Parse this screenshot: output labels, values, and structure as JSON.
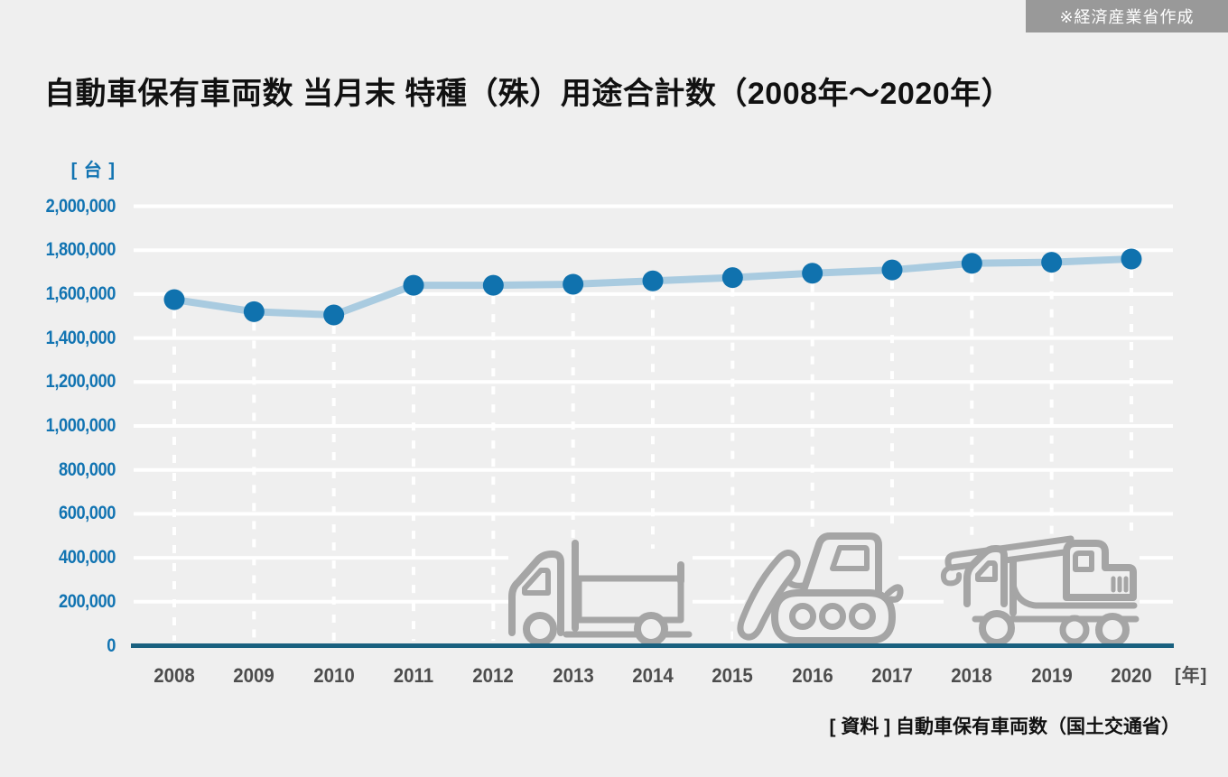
{
  "badge": {
    "label": "※経済産業省作成"
  },
  "title": "自動車保有車両数 当月末 特種（殊）用途合計数（2008年〜2020年）",
  "footer": {
    "source_label": "[ 資料 ] 自動車保有車両数（国土交通省）"
  },
  "chart_data": {
    "type": "line",
    "title": "自動車保有車両数 当月末 特種（殊）用途合計数（2008年〜2020年）",
    "unit_label": "[ 台 ]",
    "x_unit_label": "[年]",
    "categories": [
      "2008",
      "2009",
      "2010",
      "2011",
      "2012",
      "2013",
      "2014",
      "2015",
      "2016",
      "2017",
      "2018",
      "2019",
      "2020"
    ],
    "series": [
      {
        "name": "特種（殊）用途合計数",
        "values": [
          1575000,
          1520000,
          1505000,
          1640000,
          1640000,
          1645000,
          1660000,
          1675000,
          1695000,
          1710000,
          1740000,
          1745000,
          1760000
        ]
      }
    ],
    "ylim": [
      0,
      2000000
    ],
    "ytick_step": 200000,
    "ytick_labels": [
      "0",
      "200,000",
      "400,000",
      "600,000",
      "800,000",
      "1,000,000",
      "1,200,000",
      "1,400,000",
      "1,600,000",
      "1,800,000",
      "2,000,000"
    ],
    "grid": "horizontal white gridlines; white dashed vertical drop-line under each point",
    "legend": "none",
    "colors": {
      "background": "#efefef",
      "point": "#1072ae",
      "line": "#a9cbe0",
      "axis": "#19607f",
      "grid": "#ffffff",
      "ylabel": "#1274b2",
      "xlabel": "#4d4d4d",
      "icon": "#a5a5a5",
      "badge_bg": "#999999",
      "badge_text": "#ffffff",
      "title_text": "#111111"
    }
  },
  "background_icons": [
    {
      "name": "truck-icon"
    },
    {
      "name": "bulldozer-icon"
    },
    {
      "name": "crane-truck-icon"
    }
  ]
}
